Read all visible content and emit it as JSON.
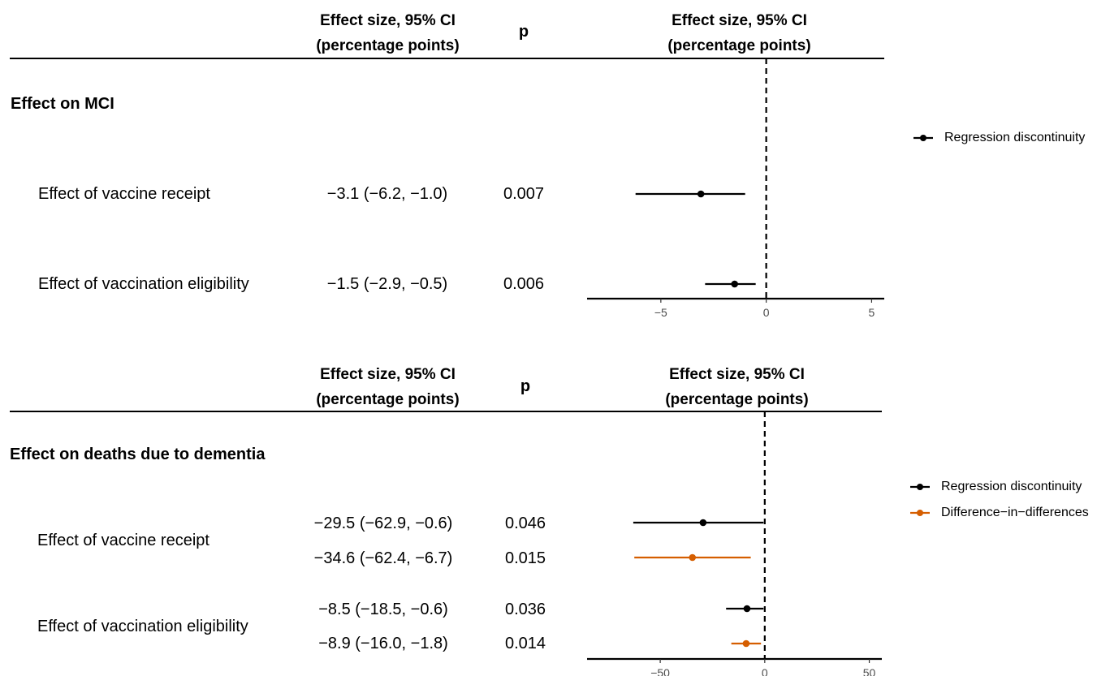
{
  "panels": [
    {
      "section_title": "Effect on MCI",
      "header_effect": [
        "Effect size, 95% CI",
        "(percentage points)"
      ],
      "header_p": "p",
      "header_plot": [
        "Effect size, 95% CI",
        "(percentage points)"
      ],
      "rows": [
        {
          "label": "Effect of vaccine receipt",
          "estimates": [
            {
              "text": "−3.1 (−6.2, −1.0)",
              "p": "0.007"
            }
          ]
        },
        {
          "label": "Effect of vaccination eligibility",
          "estimates": [
            {
              "text": "−1.5 (−2.9, −0.5)",
              "p": "0.006"
            }
          ]
        }
      ],
      "legend": [
        {
          "name": "Regression discontinuity",
          "color": "#000000"
        }
      ]
    },
    {
      "section_title": "Effect on deaths due to dementia",
      "header_effect": [
        "Effect size, 95% CI",
        "(percentage points)"
      ],
      "header_p": "p",
      "header_plot": [
        "Effect size, 95% CI",
        "(percentage points)"
      ],
      "rows": [
        {
          "label": "Effect of vaccine receipt",
          "estimates": [
            {
              "text": "−29.5 (−62.9, −0.6)",
              "p": "0.046"
            },
            {
              "text": "−34.6 (−62.4, −6.7)",
              "p": "0.015"
            }
          ]
        },
        {
          "label": "Effect of vaccination eligibility",
          "estimates": [
            {
              "text": "−8.5 (−18.5, −0.6)",
              "p": "0.036"
            },
            {
              "text": "−8.9 (−16.0, −1.8)",
              "p": "0.014"
            }
          ]
        }
      ],
      "legend": [
        {
          "name": "Regression discontinuity",
          "color": "#000000"
        },
        {
          "name": "Difference−in−differences",
          "color": "#D55E00"
        }
      ]
    }
  ],
  "chart_data": [
    {
      "type": "forest",
      "xlim": [
        -8.5,
        5.6
      ],
      "xticks": [
        -5,
        0,
        5
      ],
      "xtick_labels": [
        "−5",
        "0",
        "5"
      ],
      "reference_line": 0,
      "series": [
        {
          "name": "Regression discontinuity",
          "color": "#000000",
          "points": [
            {
              "row": "Effect of vaccine receipt",
              "est": -3.1,
              "lo": -6.2,
              "hi": -1.0
            },
            {
              "row": "Effect of vaccination eligibility",
              "est": -1.5,
              "lo": -2.9,
              "hi": -0.5
            }
          ]
        }
      ]
    },
    {
      "type": "forest",
      "xlim": [
        -85,
        56
      ],
      "xticks": [
        -50,
        0,
        50
      ],
      "xtick_labels": [
        "−50",
        "0",
        "50"
      ],
      "reference_line": 0,
      "series": [
        {
          "name": "Regression discontinuity",
          "color": "#000000",
          "points": [
            {
              "row": "Effect of vaccine receipt",
              "est": -29.5,
              "lo": -62.9,
              "hi": -0.6
            },
            {
              "row": "Effect of vaccination eligibility",
              "est": -8.5,
              "lo": -18.5,
              "hi": -0.6
            }
          ]
        },
        {
          "name": "Difference−in−differences",
          "color": "#D55E00",
          "points": [
            {
              "row": "Effect of vaccine receipt",
              "est": -34.6,
              "lo": -62.4,
              "hi": -6.7
            },
            {
              "row": "Effect of vaccination eligibility",
              "est": -8.9,
              "lo": -16.0,
              "hi": -1.8
            }
          ]
        }
      ]
    }
  ]
}
